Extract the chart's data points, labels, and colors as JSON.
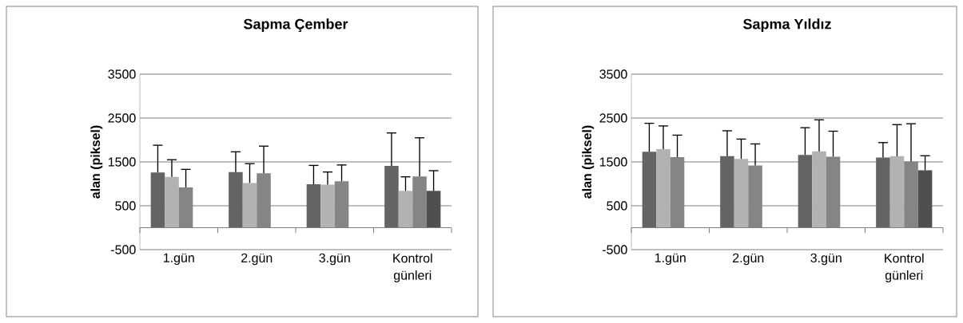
{
  "chart_data": [
    {
      "type": "bar",
      "title": "Sapma Çember",
      "ylabel": "alan  (piksel)",
      "categories": [
        "1.gün",
        "2.gün",
        "3.gün",
        "Kontrol günleri"
      ],
      "ylim": [
        -500,
        3500
      ],
      "yticks": [
        -500,
        500,
        1500,
        2500,
        3500
      ],
      "grid": "y",
      "series": [
        {
          "color": "#646464",
          "values": [
            1260,
            1270,
            990,
            1410
          ],
          "errors": [
            [
              1260,
              1880
            ],
            [
              1270,
              1730
            ],
            [
              990,
              1420
            ],
            [
              1410,
              2160
            ]
          ]
        },
        {
          "color": "#b2b2b2",
          "values": [
            1160,
            1020,
            980,
            840
          ],
          "errors": [
            [
              1160,
              1550
            ],
            [
              1020,
              1460
            ],
            [
              980,
              1270
            ],
            [
              840,
              1160
            ]
          ]
        },
        {
          "color": "#858585",
          "values": [
            920,
            1240,
            1060,
            1170
          ],
          "errors": [
            [
              920,
              1330
            ],
            [
              1240,
              1860
            ],
            [
              1060,
              1430
            ],
            [
              1170,
              2050
            ]
          ]
        },
        {
          "color": "#4f4f4f",
          "values": [
            null,
            null,
            null,
            840
          ],
          "errors": [
            null,
            null,
            null,
            [
              840,
              1300
            ]
          ]
        }
      ]
    },
    {
      "type": "bar",
      "title": "Sapma Yıldız",
      "ylabel": "alan (piksel)",
      "categories": [
        "1.gün",
        "2.gün",
        "3.gün",
        "Kontrol günleri"
      ],
      "ylim": [
        -500,
        3500
      ],
      "yticks": [
        -500,
        500,
        1500,
        2500,
        3500
      ],
      "grid": "y",
      "series": [
        {
          "color": "#646464",
          "values": [
            1730,
            1630,
            1660,
            1600
          ],
          "errors": [
            [
              1730,
              2380
            ],
            [
              1630,
              2210
            ],
            [
              1660,
              2280
            ],
            [
              1600,
              1940
            ]
          ]
        },
        {
          "color": "#b2b2b2",
          "values": [
            1790,
            1570,
            1740,
            1630
          ],
          "errors": [
            [
              1790,
              2320
            ],
            [
              1570,
              2020
            ],
            [
              1740,
              2460
            ],
            [
              1630,
              2350
            ]
          ]
        },
        {
          "color": "#858585",
          "values": [
            1610,
            1420,
            1620,
            1510
          ],
          "errors": [
            [
              1610,
              2110
            ],
            [
              1420,
              1910
            ],
            [
              1620,
              2200
            ],
            [
              1510,
              2370
            ]
          ]
        },
        {
          "color": "#4f4f4f",
          "values": [
            null,
            null,
            null,
            1310
          ],
          "errors": [
            null,
            null,
            null,
            [
              1310,
              1640
            ]
          ]
        }
      ]
    }
  ]
}
